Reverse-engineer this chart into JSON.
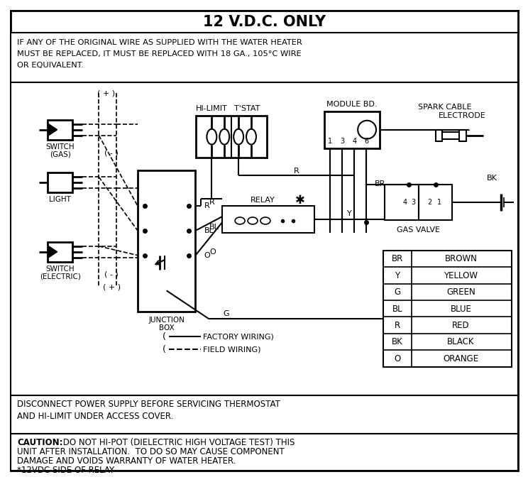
{
  "title": "12 V.D.C. ONLY",
  "warning_lines": [
    "IF ANY OF THE ORIGINAL WIRE AS SUPPLIED WITH THE WATER HEATER",
    "MUST BE REPLACED, IT MUST BE REPLACED WITH 18 GA., 105°C WIRE",
    "OR EQUIVALENT."
  ],
  "disconnect_lines": [
    "DISCONNECT POWER SUPPLY BEFORE SERVICING THERMOSTAT",
    "AND HI-LIMIT UNDER ACCESS COVER."
  ],
  "caution_bold": "CAUTION:",
  "caution_rest": " DO NOT HI-POT (DIELECTRIC HIGH VOLTAGE TEST) THIS",
  "caution_lines": [
    "UNIT AFTER INSTALLATION.  TO DO SO MAY CAUSE COMPONENT",
    "DAMAGE AND VOIDS WARRANTY OF WATER HEATER.",
    "*12VDC SIDE OF RELAY"
  ],
  "legend": [
    [
      "BR",
      "BROWN"
    ],
    [
      "Y",
      "YELLOW"
    ],
    [
      "G",
      "GREEN"
    ],
    [
      "BL",
      "BLUE"
    ],
    [
      "R",
      "RED"
    ],
    [
      "BK",
      "BLACK"
    ],
    [
      "O",
      "ORANGE"
    ]
  ],
  "bg": "#ffffff",
  "lc": "#000000"
}
